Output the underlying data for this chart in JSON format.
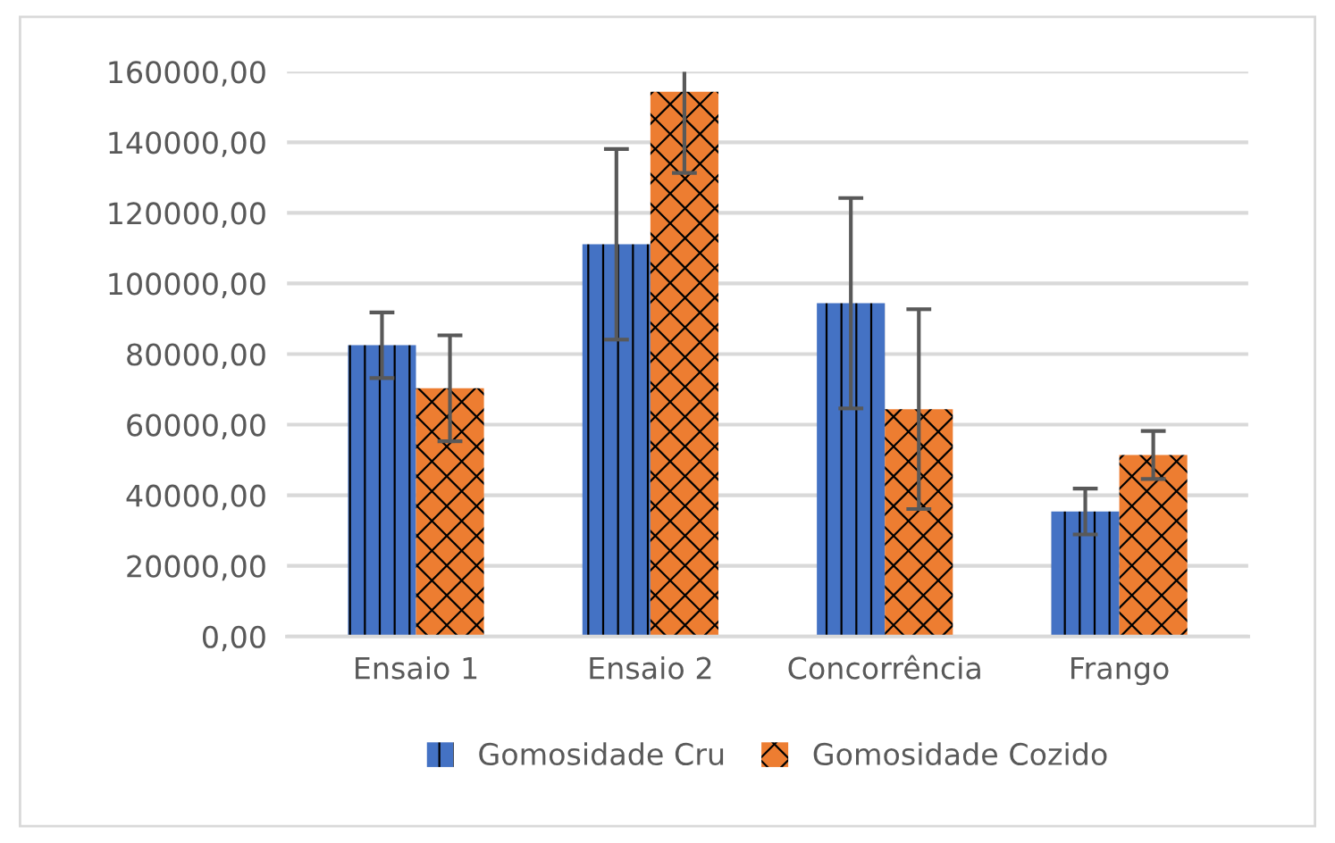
{
  "chart_data": {
    "type": "bar",
    "categories": [
      "Ensaio 1",
      "Ensaio 2",
      "Concorrência",
      "Frango"
    ],
    "series": [
      {
        "name": "Gomosidade Cru",
        "color": "#4472c4",
        "values": [
          82500,
          111100,
          94400,
          35400
        ],
        "errors": [
          9300,
          27000,
          29800,
          6500
        ]
      },
      {
        "name": "Gomosidade Cozido",
        "color": "#ed7d31",
        "values": [
          70300,
          154300,
          64400,
          51400
        ],
        "errors": [
          15000,
          [
            131300,
            160000
          ],
          28300,
          6800
        ]
      }
    ],
    "ylim": [
      0,
      160000
    ],
    "yticks": [
      {
        "value": 0,
        "label": "0,00"
      },
      {
        "value": 20000,
        "label": "20000,00"
      },
      {
        "value": 40000,
        "label": "40000,00"
      },
      {
        "value": 60000,
        "label": "60000,00"
      },
      {
        "value": 80000,
        "label": "80000,00"
      },
      {
        "value": 100000,
        "label": "100000,00"
      },
      {
        "value": 120000,
        "label": "120000,00"
      },
      {
        "value": 140000,
        "label": "140000,00"
      },
      {
        "value": 160000,
        "label": "160000,00"
      }
    ],
    "grid": "y",
    "legend": "bottom"
  }
}
